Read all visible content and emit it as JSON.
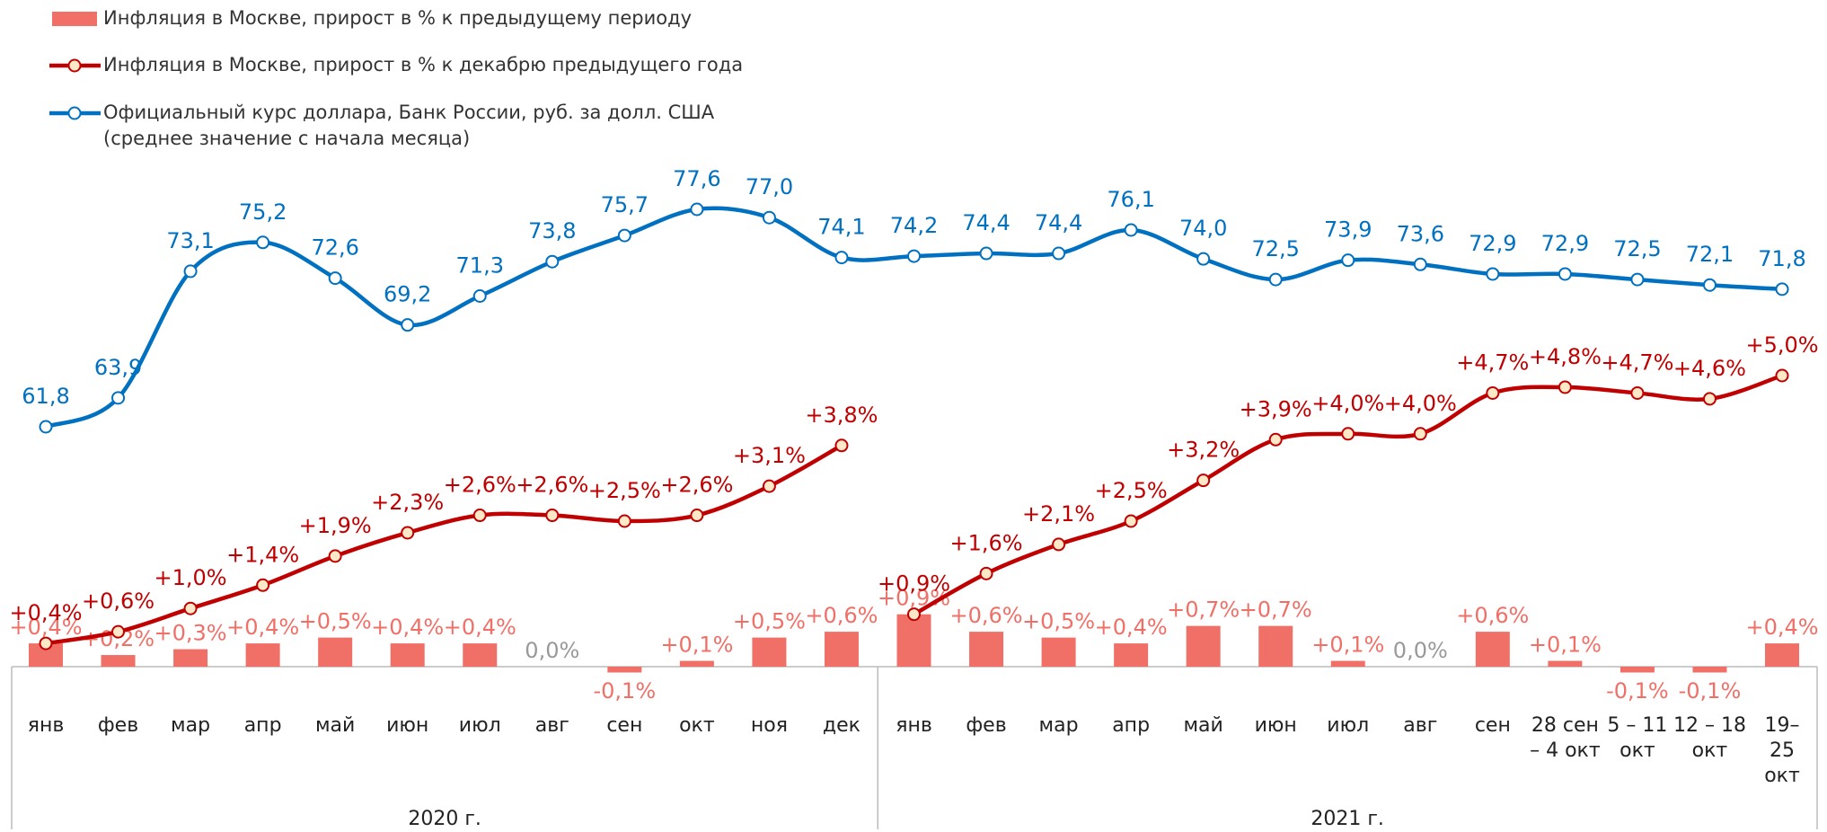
{
  "chart_data": {
    "type": "combo",
    "groups": [
      {
        "label": "2020 г.",
        "categories": [
          "янв",
          "фев",
          "мар",
          "апр",
          "май",
          "июн",
          "июл",
          "авг",
          "сен",
          "окт",
          "ноя",
          "дек"
        ]
      },
      {
        "label": "2021 г.",
        "categories": [
          "янв",
          "фев",
          "мар",
          "апр",
          "май",
          "июн",
          "июл",
          "авг",
          "сен",
          "28 сен\n– 4 окт",
          "5 – 11\nокт",
          "12 – 18\nокт",
          "19–25\nокт"
        ]
      }
    ],
    "series": [
      {
        "name": "Инфляция в Москве, прирост в % к предыдущему периоду",
        "type": "bar",
        "color": "#f07068",
        "values": [
          0.4,
          0.2,
          0.3,
          0.4,
          0.5,
          0.4,
          0.4,
          0.0,
          -0.1,
          0.1,
          0.5,
          0.6,
          0.9,
          0.6,
          0.5,
          0.4,
          0.7,
          0.7,
          0.1,
          0.0,
          0.6,
          0.1,
          -0.1,
          -0.1,
          0.4
        ],
        "value_labels": [
          "+0,4%",
          "+0,2%",
          "+0,3%",
          "+0,4%",
          "+0,5%",
          "+0,4%",
          "+0,4%",
          "0,0%",
          "-0,1%",
          "+0,1%",
          "+0,5%",
          "+0,6%",
          "+0,9%",
          "+0,6%",
          "+0,5%",
          "+0,4%",
          "+0,7%",
          "+0,7%",
          "+0,1%",
          "0,0%",
          "+0,6%",
          "+0,1%",
          "-0,1%",
          "-0,1%",
          "+0,4%"
        ]
      },
      {
        "name": "Инфляция в Москве, прирост в % к декабрю предыдущего года",
        "type": "line",
        "color": "#c00000",
        "values": [
          0.4,
          0.6,
          1.0,
          1.4,
          1.9,
          2.3,
          2.6,
          2.6,
          2.5,
          2.6,
          3.1,
          3.8,
          0.9,
          1.6,
          2.1,
          2.5,
          3.2,
          3.9,
          4.0,
          4.0,
          4.7,
          4.8,
          4.7,
          4.6,
          5.0
        ],
        "value_labels": [
          "+0,4%",
          "+0,6%",
          "+1,0%",
          "+1,4%",
          "+1,9%",
          "+2,3%",
          "+2,6%",
          "+2,6%",
          "+2,5%",
          "+2,6%",
          "+3,1%",
          "+3,8%",
          "+0,9%",
          "+1,6%",
          "+2,1%",
          "+2,5%",
          "+3,2%",
          "+3,9%",
          "+4,0%",
          "+4,0%",
          "+4,7%",
          "+4,8%",
          "+4,7%",
          "+4,6%",
          "+5,0%"
        ]
      },
      {
        "name": "Официальный курс доллара, Банк России, руб. за долл. США\n(среднее значение с начала месяца)",
        "type": "line",
        "axis": "y2",
        "color": "#0070c0",
        "values": [
          61.8,
          63.9,
          73.1,
          75.2,
          72.6,
          69.2,
          71.3,
          73.8,
          75.7,
          77.6,
          77.0,
          74.1,
          74.2,
          74.4,
          74.4,
          76.1,
          74.0,
          72.5,
          73.9,
          73.6,
          72.9,
          72.9,
          72.5,
          72.1,
          71.8
        ],
        "value_labels": [
          "61,8",
          "63,9",
          "73,1",
          "75,2",
          "72,6",
          "69,2",
          "71,3",
          "73,8",
          "75,7",
          "77,6",
          "77,0",
          "74,1",
          "74,2",
          "74,4",
          "74,4",
          "76,1",
          "74,0",
          "72,5",
          "73,9",
          "73,6",
          "72,9",
          "72,9",
          "72,5",
          "72,1",
          "71,8"
        ]
      }
    ]
  }
}
